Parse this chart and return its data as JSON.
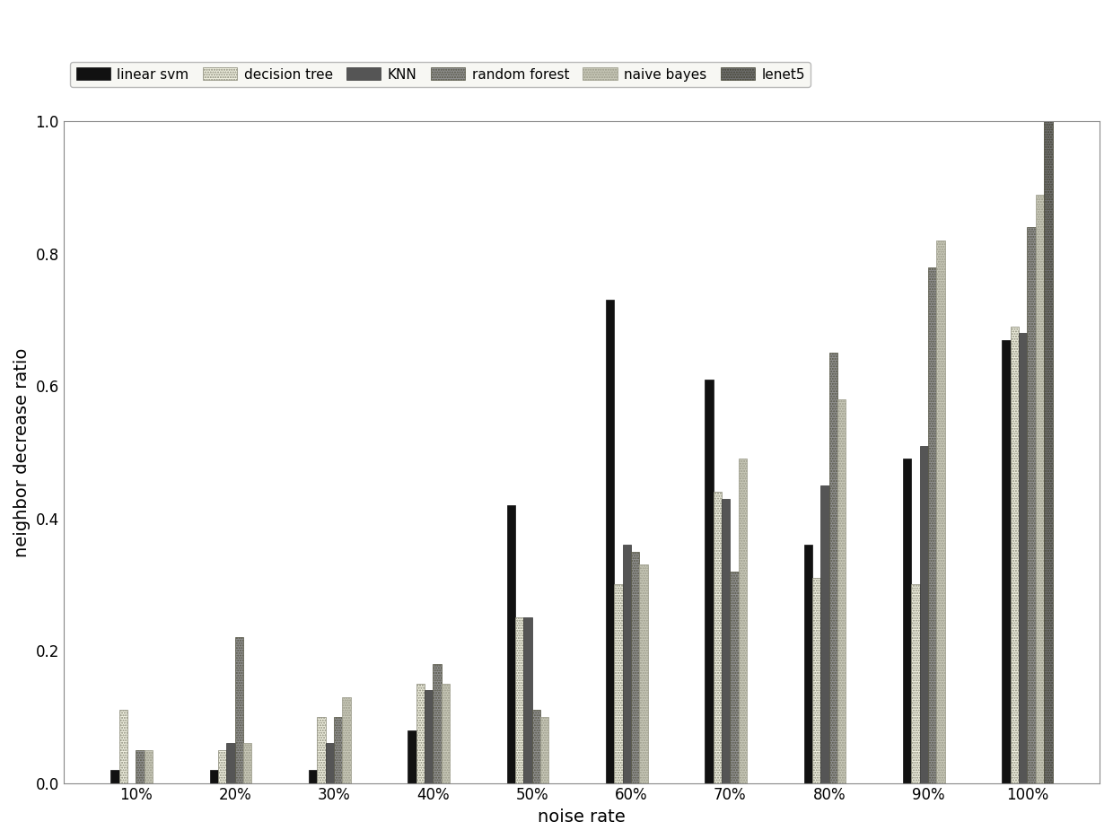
{
  "categories": [
    "10%",
    "20%",
    "30%",
    "40%",
    "50%",
    "60%",
    "70%",
    "80%",
    "90%",
    "100%"
  ],
  "series": {
    "linear svm": [
      0.02,
      0.02,
      0.02,
      0.08,
      0.42,
      0.73,
      0.61,
      0.36,
      0.49,
      0.67
    ],
    "decision tree": [
      0.11,
      0.05,
      0.1,
      0.15,
      0.25,
      0.3,
      0.44,
      0.31,
      0.3,
      0.69
    ],
    "KNN": [
      0.0,
      0.06,
      0.06,
      0.14,
      0.25,
      0.36,
      0.43,
      0.45,
      0.51,
      0.68
    ],
    "random forest": [
      0.05,
      0.22,
      0.1,
      0.18,
      0.11,
      0.35,
      0.32,
      0.65,
      0.78,
      0.84
    ],
    "naive bayes": [
      0.05,
      0.06,
      0.13,
      0.15,
      0.1,
      0.33,
      0.49,
      0.58,
      0.82,
      0.89
    ],
    "lenet5": [
      0.0,
      0.0,
      0.0,
      0.0,
      0.0,
      0.0,
      0.0,
      0.0,
      0.0,
      1.0
    ]
  },
  "colors": {
    "linear svm": "#111111",
    "decision tree": "#f5f5e8",
    "KNN": "#555555",
    "random forest": "#aaaaaa",
    "naive bayes": "#ddddcc",
    "lenet5": "#888888"
  },
  "hatches": {
    "linear svm": "",
    "decision tree": "....",
    "KNN": "....",
    "random forest": "....",
    "naive bayes": "....",
    "lenet5": "...."
  },
  "edgecolors": {
    "linear svm": "#111111",
    "decision tree": "#777766",
    "KNN": "#333333",
    "random forest": "#555555",
    "naive bayes": "#888877",
    "lenet5": "#444444"
  },
  "xlabel": "noise rate",
  "ylabel": "neighbor decrease ratio",
  "ylim": [
    0.0,
    1.0
  ],
  "bar_width": 0.085,
  "background_color": "#ffffff",
  "figure_background": "#ffffff"
}
